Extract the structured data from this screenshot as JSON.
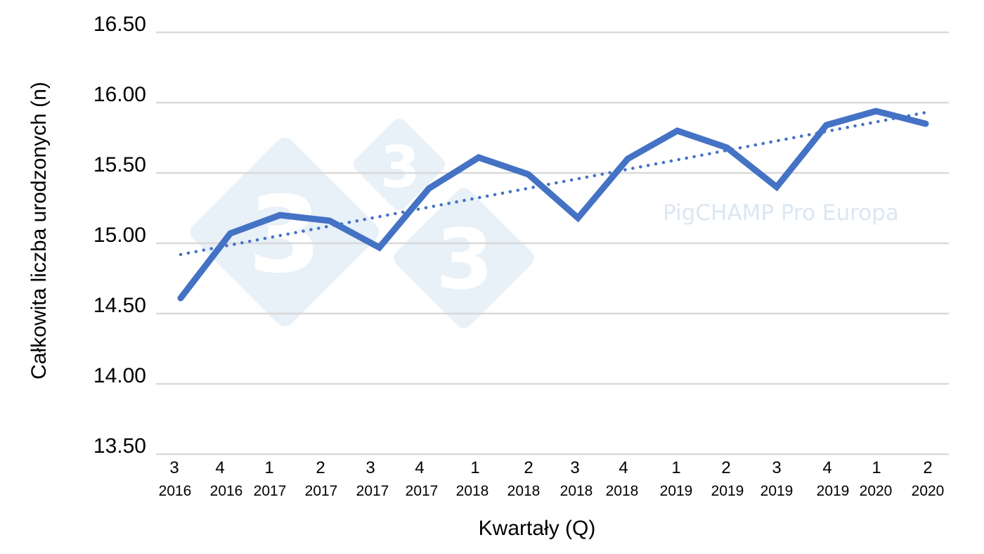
{
  "chart_data": {
    "type": "line",
    "title": "",
    "xlabel": "Kwartały (Q)",
    "ylabel": "Całkowita liczba urodzonych (n)",
    "ylim": [
      13.5,
      16.5
    ],
    "yticks": [
      "13.50",
      "14.00",
      "14.50",
      "15.00",
      "15.50",
      "16.00",
      "16.50"
    ],
    "grid": true,
    "legend": null,
    "categories": [
      {
        "q": "3",
        "year": "2016"
      },
      {
        "q": "4",
        "year": "2016"
      },
      {
        "q": "1",
        "year": "2017"
      },
      {
        "q": "2",
        "year": "2017"
      },
      {
        "q": "3",
        "year": "2017"
      },
      {
        "q": "4",
        "year": "2017"
      },
      {
        "q": "1",
        "year": "2018"
      },
      {
        "q": "2",
        "year": "2018"
      },
      {
        "q": "3",
        "year": "2018"
      },
      {
        "q": "4",
        "year": "2018"
      },
      {
        "q": "1",
        "year": "2019"
      },
      {
        "q": "2",
        "year": "2019"
      },
      {
        "q": "3",
        "year": "2019"
      },
      {
        "q": "4",
        "year": "2019"
      },
      {
        "q": "1",
        "year": "2020"
      },
      {
        "q": "2",
        "year": "2020"
      }
    ],
    "series": [
      {
        "name": "Całkowita liczba urodzonych",
        "style": "solid",
        "color": "#4472C4",
        "values": [
          14.61,
          15.07,
          15.2,
          15.16,
          14.97,
          15.39,
          15.61,
          15.49,
          15.18,
          15.6,
          15.8,
          15.68,
          15.4,
          15.84,
          15.94,
          15.85
        ]
      },
      {
        "name": "Linear trend",
        "style": "dotted",
        "color": "#4472C4",
        "values": [
          14.92,
          15.93
        ]
      }
    ],
    "watermark": {
      "text": "PigCHAMP Pro Europa",
      "logo_digit": "3"
    }
  },
  "colors": {
    "line": "#4472C4",
    "grid": "#d9d9d9",
    "watermark_shape": "#e8f0f8",
    "watermark_text": "#dbe7f2"
  }
}
